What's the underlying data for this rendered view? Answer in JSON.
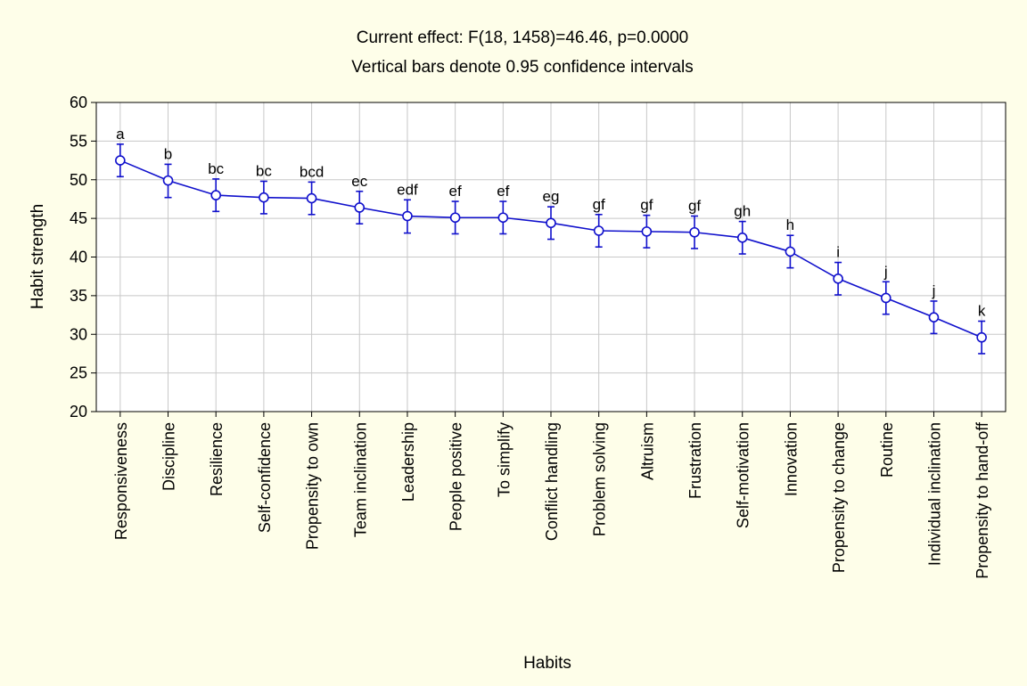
{
  "chart_data": {
    "type": "line",
    "title": "Current effect: F(18, 1458)=46.46, p=0.0000",
    "subtitle": "Vertical bars denote 0.95 confidence intervals",
    "xlabel": "Habits",
    "ylabel": "Habit strength",
    "ylim": [
      20,
      60
    ],
    "yticks": [
      20,
      25,
      30,
      35,
      40,
      45,
      50,
      55,
      60
    ],
    "grid": true,
    "colors": {
      "series": "#1010cc",
      "background": "#fefee9",
      "plot_background": "#ffffff",
      "grid": "#c8c8c8"
    },
    "categories": [
      "Responsiveness",
      "Discipline",
      "Resilience",
      "Self-confidence",
      "Propensity to own",
      "Team inclination",
      "Leadership",
      "People positive",
      "To simplify",
      "Conflict handling",
      "Problem solving",
      "Altruism",
      "Frustration",
      "Self-motivation",
      "Innovation",
      "Propensity to change",
      "Routine",
      "Individual inclination",
      "Propensity to hand-off"
    ],
    "series": [
      {
        "values": [
          52.5,
          49.9,
          48.0,
          47.7,
          47.6,
          46.4,
          45.3,
          45.1,
          45.1,
          44.4,
          43.4,
          43.3,
          43.2,
          42.5,
          40.7,
          37.2,
          34.7,
          32.2,
          29.6
        ],
        "ci_low": [
          50.4,
          47.7,
          45.9,
          45.6,
          45.5,
          44.3,
          43.1,
          43.0,
          43.0,
          42.3,
          41.3,
          41.2,
          41.1,
          40.4,
          38.6,
          35.1,
          32.6,
          30.1,
          27.5
        ],
        "ci_high": [
          54.6,
          52.0,
          50.1,
          49.8,
          49.7,
          48.5,
          47.4,
          47.2,
          47.2,
          46.5,
          45.5,
          45.4,
          45.3,
          44.6,
          42.8,
          39.3,
          36.8,
          34.3,
          31.7
        ],
        "labels": [
          "a",
          "b",
          "bc",
          "bc",
          "bcd",
          "ec",
          "edf",
          "ef",
          "ef",
          "eg",
          "gf",
          "gf",
          "gf",
          "gh",
          "h",
          "i",
          "j",
          "j",
          "k"
        ]
      }
    ]
  }
}
